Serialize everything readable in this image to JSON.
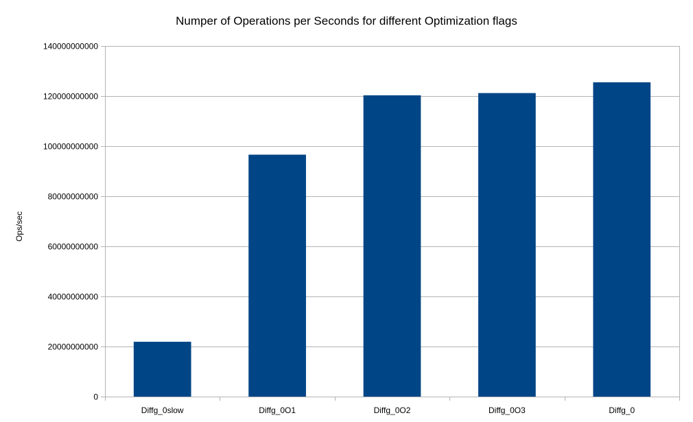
{
  "chart_data": {
    "type": "bar",
    "title": "Numper of Operations per Seconds for different Optimization flags",
    "xlabel": "",
    "ylabel": "Ops/sec",
    "categories": [
      "Diffg_0slow",
      "Diffg_0O1",
      "Diffg_0O2",
      "Diffg_0O3",
      "Diffg_0"
    ],
    "series": [
      {
        "values": [
          21900000000,
          96600000000,
          120300000000,
          121200000000,
          125500000000
        ]
      }
    ],
    "ylim": [
      0,
      140000000000
    ],
    "yticks": [
      0,
      20000000000,
      40000000000,
      60000000000,
      80000000000,
      100000000000,
      120000000000,
      140000000000
    ],
    "ytick_labels": [
      "0",
      "20000000000",
      "40000000000",
      "60000000000",
      "80000000000",
      "100000000000",
      "120000000000",
      "140000000000"
    ],
    "grid": true,
    "legend": "none",
    "bar_color": "#004586",
    "grid_color": "#b3b3b3"
  }
}
